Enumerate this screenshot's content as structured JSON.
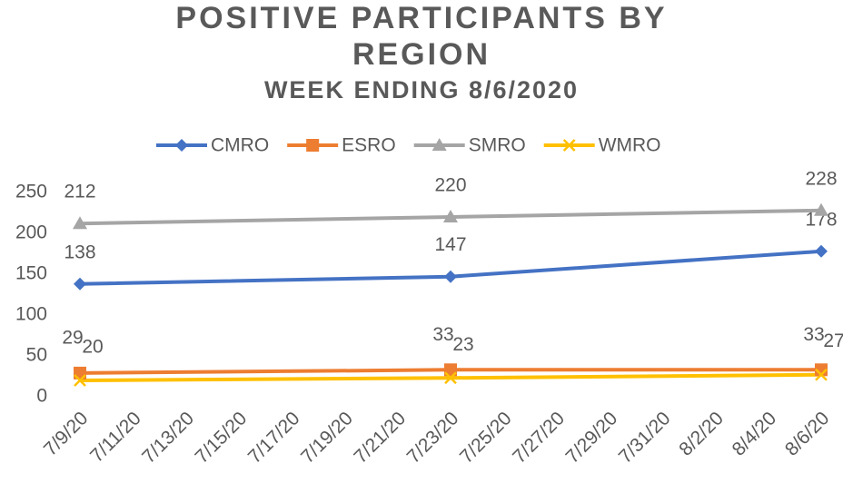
{
  "chart_data": {
    "type": "line",
    "title": "POSITIVE PARTICIPANTS BY REGION",
    "subtitle": "WEEK ENDING 8/6/2020",
    "x": [
      "7/9/20",
      "7/23/20",
      "8/6/20"
    ],
    "xlim": [
      "7/9/20",
      "8/6/20"
    ],
    "xticks": [
      "7/9/20",
      "7/11/20",
      "7/13/20",
      "7/15/20",
      "7/17/20",
      "7/19/20",
      "7/21/20",
      "7/23/20",
      "7/25/20",
      "7/27/20",
      "7/29/20",
      "7/31/20",
      "8/2/20",
      "8/4/20",
      "8/6/20"
    ],
    "ylim": [
      0,
      250
    ],
    "yticks": [
      0,
      50,
      100,
      150,
      200,
      250
    ],
    "grid": false,
    "legend": "top",
    "series": [
      {
        "name": "CMRO",
        "color": "#4472c4",
        "marker": "diamond",
        "values": [
          138,
          147,
          178
        ]
      },
      {
        "name": "ESRO",
        "color": "#ed7d31",
        "marker": "square",
        "values": [
          29,
          33,
          33
        ]
      },
      {
        "name": "SMRO",
        "color": "#a5a5a5",
        "marker": "triangle",
        "values": [
          212,
          220,
          228
        ]
      },
      {
        "name": "WMRO",
        "color": "#ffc000",
        "marker": "x",
        "values": [
          20,
          23,
          27
        ]
      }
    ]
  }
}
